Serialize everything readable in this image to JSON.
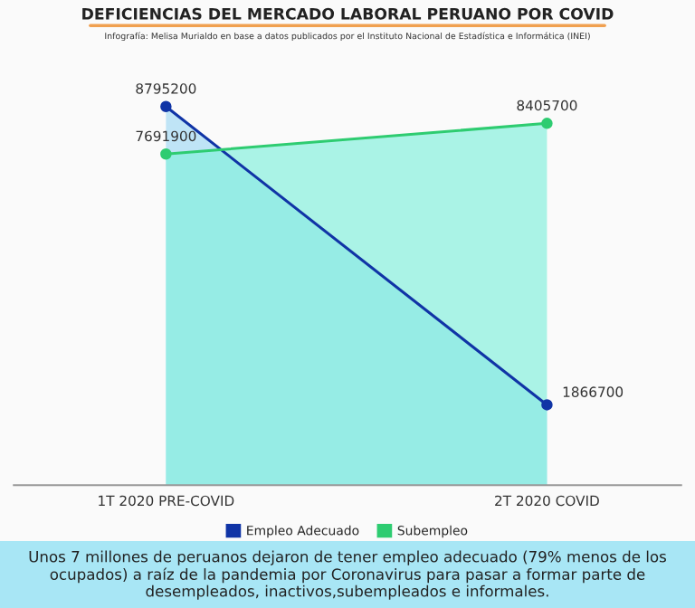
{
  "chart_data": {
    "type": "area",
    "title": "DEFICIENCIAS DEL MERCADO LABORAL PERUANO POR COVID",
    "subtitle": "Infografía: Melisa Murialdo en base a datos publicados por el Instituto Nacional de Estadística e Informática (INEI)",
    "categories": [
      "1T 2020 PRE-COVID",
      "2T 2020 COVID"
    ],
    "series": [
      {
        "name": "Empleo Adecuado",
        "color": "#1034a6",
        "values": [
          8795200,
          1866700
        ]
      },
      {
        "name": "Subempleo",
        "color": "#2ecc71",
        "values": [
          7691900,
          8405700
        ]
      }
    ],
    "data_labels": true,
    "marker": "circle",
    "legend": "bottom",
    "grid": false,
    "annotations": [
      "Unos 7 millones de peruanos dejaron de tener empleo adecuado (79% menos de los ocupados) a raíz de la pandemia por Coronavirus para pasar a formar parte de desempleados, inactivos,subempleados e informales."
    ]
  }
}
